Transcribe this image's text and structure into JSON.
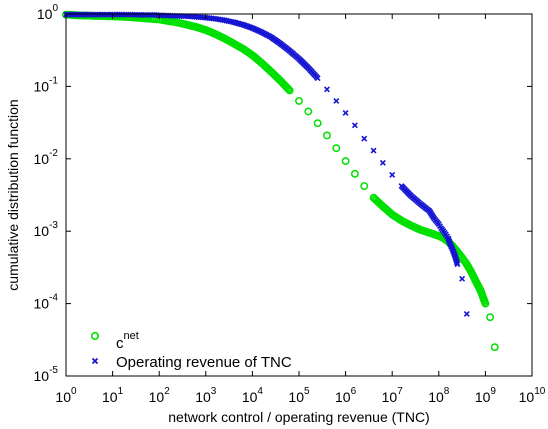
{
  "chart_data": {
    "type": "scatter",
    "xlabel": "network control / operating revenue (TNC)",
    "ylabel": "cumulative distribution function",
    "xscale": "log",
    "yscale": "log",
    "xlim": [
      1,
      10000000000
    ],
    "ylim": [
      1e-05,
      1
    ],
    "grid": false,
    "legend_position": "bottom-left",
    "x_ticks": [
      {
        "base": "10",
        "exp": "0"
      },
      {
        "base": "10",
        "exp": "1"
      },
      {
        "base": "10",
        "exp": "2"
      },
      {
        "base": "10",
        "exp": "3"
      },
      {
        "base": "10",
        "exp": "4"
      },
      {
        "base": "10",
        "exp": "5"
      },
      {
        "base": "10",
        "exp": "6"
      },
      {
        "base": "10",
        "exp": "7"
      },
      {
        "base": "10",
        "exp": "8"
      },
      {
        "base": "10",
        "exp": "9"
      },
      {
        "base": "10",
        "exp": "10"
      }
    ],
    "y_ticks": [
      {
        "base": "10",
        "exp": "-5"
      },
      {
        "base": "10",
        "exp": "-4"
      },
      {
        "base": "10",
        "exp": "-3"
      },
      {
        "base": "10",
        "exp": "-2"
      },
      {
        "base": "10",
        "exp": "-1"
      },
      {
        "base": "10",
        "exp": "0"
      }
    ],
    "series": [
      {
        "name_base": "c",
        "name_sup": "net",
        "marker": "circle",
        "color": "#00e000",
        "x": [
          1,
          1.3,
          1.8,
          2.5,
          3.2,
          4,
          5.6,
          7.9,
          10,
          14,
          20,
          32,
          50,
          79,
          100,
          158,
          251,
          398,
          631,
          1000,
          1585,
          2512,
          3981,
          6310,
          10000,
          15849,
          25119,
          39811,
          63096,
          100000,
          158489,
          251189,
          398107,
          630957,
          1000000,
          1584893,
          2511886,
          3981072,
          6309573,
          10000000,
          15848932,
          25118864,
          39810717,
          63095734,
          100000000,
          125892541,
          158489319,
          199526231,
          251188643,
          316227766,
          398107171,
          501187234,
          630957344,
          794328235,
          1000000000,
          1258925412,
          1584893192
        ],
        "y": [
          0.98,
          0.97,
          0.96,
          0.95,
          0.95,
          0.94,
          0.94,
          0.93,
          0.93,
          0.92,
          0.91,
          0.89,
          0.87,
          0.85,
          0.84,
          0.8,
          0.76,
          0.71,
          0.66,
          0.6,
          0.53,
          0.46,
          0.39,
          0.33,
          0.27,
          0.21,
          0.16,
          0.12,
          0.088,
          0.063,
          0.045,
          0.031,
          0.021,
          0.014,
          0.0093,
          0.0062,
          0.0042,
          0.0029,
          0.0022,
          0.0017,
          0.0014,
          0.0012,
          0.00105,
          0.00095,
          0.00086,
          0.0008,
          0.00072,
          0.00062,
          0.00052,
          0.00043,
          0.00035,
          0.00027,
          0.0002,
          0.00015,
          0.0001,
          6.5e-05,
          2.5e-05
        ]
      },
      {
        "name": "Operating revenue of TNC",
        "marker": "x",
        "color": "#1414d2",
        "x": [
          1,
          1.3,
          1.8,
          2.5,
          3.2,
          4,
          5.6,
          7.9,
          10,
          14,
          20,
          32,
          50,
          79,
          100,
          158,
          251,
          398,
          631,
          1000,
          1585,
          2512,
          3981,
          6310,
          10000,
          15849,
          25119,
          39811,
          63096,
          100000,
          158489,
          251189,
          398107,
          630957,
          1000000,
          1584893,
          2511886,
          3981072,
          6309573,
          10000000,
          15848932,
          25118864,
          39810717,
          63095734,
          79432823,
          100000000,
          112201845,
          125892541,
          141253754,
          158489319,
          177827941,
          199526231,
          223872114,
          251188643,
          316227766,
          398107171
        ],
        "y": [
          0.98,
          0.98,
          0.98,
          0.98,
          0.98,
          0.98,
          0.98,
          0.98,
          0.98,
          0.98,
          0.98,
          0.975,
          0.97,
          0.97,
          0.96,
          0.95,
          0.94,
          0.93,
          0.91,
          0.89,
          0.86,
          0.82,
          0.77,
          0.71,
          0.64,
          0.56,
          0.48,
          0.39,
          0.31,
          0.24,
          0.18,
          0.13,
          0.091,
          0.063,
          0.043,
          0.029,
          0.019,
          0.013,
          0.0088,
          0.006,
          0.0042,
          0.0031,
          0.0024,
          0.0019,
          0.0015,
          0.00125,
          0.0011,
          0.001,
          0.0009,
          0.0008,
          0.00065,
          0.00055,
          0.00045,
          0.00035,
          0.00022,
          7.2e-05
        ]
      }
    ]
  }
}
